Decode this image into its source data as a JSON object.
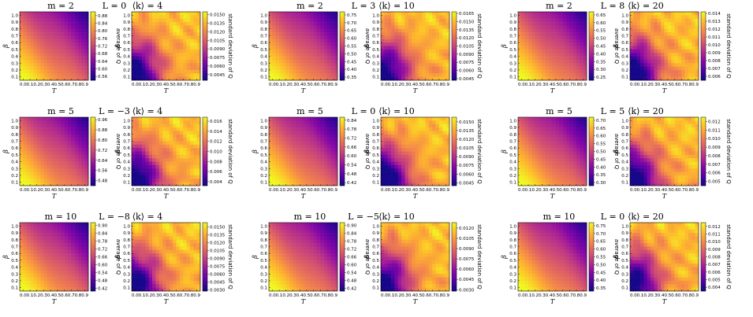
{
  "chart_data": [
    {
      "type": "heatmap",
      "row": 0,
      "col": 0,
      "title_left": "m = 2",
      "title_right": "L = 0",
      "avg_panel": {
        "colorbar_label": "average of Q",
        "colorbar_ticks": [
          "0.88",
          "0.84",
          "0.80",
          "0.76",
          "0.72",
          "0.68",
          "0.64",
          "0.60",
          "0.56"
        ],
        "vmin": 0.54,
        "vmax": 0.9
      },
      "std_panel": {
        "title": "⟨k⟩ = 4",
        "colorbar_label": "standard deviation of Q",
        "colorbar_ticks": [
          "0.0150",
          "0.0135",
          "0.0120",
          "0.0105",
          "0.0090",
          "0.0075",
          "0.0060",
          "0.0045"
        ],
        "vmin": 0.0035,
        "vmax": 0.0155
      },
      "xlabel": "T",
      "ylabel": "β",
      "xticks": [
        "0.0",
        "0.1",
        "0.2",
        "0.3",
        "0.4",
        "0.5",
        "0.6",
        "0.7",
        "0.8",
        "0.9"
      ],
      "yticks": [
        "0.1",
        "0.2",
        "0.3",
        "0.4",
        "0.5",
        "0.6",
        "0.7",
        "0.8",
        "0.9",
        "1.0"
      ]
    },
    {
      "type": "heatmap",
      "row": 0,
      "col": 1,
      "title_left": "m = 2",
      "title_right": "L = 3",
      "avg_panel": {
        "colorbar_label": "average of Q",
        "colorbar_ticks": [
          "0.75",
          "0.70",
          "0.65",
          "0.60",
          "0.55",
          "0.50",
          "0.45",
          "0.40",
          "0.35"
        ],
        "vmin": 0.33,
        "vmax": 0.77
      },
      "std_panel": {
        "title": "⟨k⟩ = 10",
        "colorbar_label": "standard deviation of Q",
        "colorbar_ticks": [
          "0.0165",
          "0.0150",
          "0.0135",
          "0.0120",
          "0.0105",
          "0.0090",
          "0.0075",
          "0.0060",
          "0.0045"
        ],
        "vmin": 0.0042,
        "vmax": 0.0168
      },
      "xlabel": "T",
      "ylabel": "β",
      "xticks": [
        "0.0",
        "0.1",
        "0.2",
        "0.3",
        "0.4",
        "0.5",
        "0.6",
        "0.7",
        "0.8",
        "0.9"
      ],
      "yticks": [
        "0.1",
        "0.2",
        "0.3",
        "0.4",
        "0.5",
        "0.6",
        "0.7",
        "0.8",
        "0.9",
        "1.0"
      ]
    },
    {
      "type": "heatmap",
      "row": 0,
      "col": 2,
      "title_left": "m = 2",
      "title_right": "L = 8",
      "avg_panel": {
        "colorbar_label": "average of Q",
        "colorbar_ticks": [
          "0.65",
          "0.60",
          "0.55",
          "0.50",
          "0.45",
          "0.40",
          "0.35",
          "0.30",
          "0.25"
        ],
        "vmin": 0.23,
        "vmax": 0.67
      },
      "std_panel": {
        "title": "⟨k⟩ = 20",
        "colorbar_label": "standard deviation of Q",
        "colorbar_ticks": [
          "0.014",
          "0.013",
          "0.012",
          "0.011",
          "0.010",
          "0.009",
          "0.008",
          "0.007",
          "0.006"
        ],
        "vmin": 0.0055,
        "vmax": 0.0142
      },
      "xlabel": "T",
      "ylabel": "β",
      "xticks": [
        "0.0",
        "0.1",
        "0.2",
        "0.3",
        "0.4",
        "0.5",
        "0.6",
        "0.7",
        "0.8",
        "0.9"
      ],
      "yticks": [
        "0.1",
        "0.2",
        "0.3",
        "0.4",
        "0.5",
        "0.6",
        "0.7",
        "0.8",
        "0.9",
        "1.0"
      ]
    },
    {
      "type": "heatmap",
      "row": 1,
      "col": 0,
      "title_left": "m = 5",
      "title_right": "L = −3",
      "avg_panel": {
        "colorbar_label": "average of Q",
        "colorbar_ticks": [
          "0.96",
          "0.88",
          "0.80",
          "0.72",
          "0.64",
          "0.56",
          "0.48"
        ],
        "vmin": 0.44,
        "vmax": 0.98
      },
      "std_panel": {
        "title": "⟨k⟩ = 4",
        "colorbar_label": "standard deviation of Q",
        "colorbar_ticks": [
          "0.016",
          "0.014",
          "0.012",
          "0.010",
          "0.008",
          "0.006",
          "0.004"
        ],
        "vmin": 0.0032,
        "vmax": 0.0168
      },
      "xlabel": "T",
      "ylabel": "β",
      "xticks": [
        "0.0",
        "0.1",
        "0.2",
        "0.3",
        "0.4",
        "0.5",
        "0.6",
        "0.7",
        "0.8",
        "0.9"
      ],
      "yticks": [
        "0.1",
        "0.2",
        "0.3",
        "0.4",
        "0.5",
        "0.6",
        "0.7",
        "0.8",
        "0.9",
        "1.0"
      ]
    },
    {
      "type": "heatmap",
      "row": 1,
      "col": 1,
      "title_left": "m = 5",
      "title_right": "L = 0",
      "avg_panel": {
        "colorbar_label": "average of Q",
        "colorbar_ticks": [
          "0.84",
          "0.78",
          "0.72",
          "0.66",
          "0.60",
          "0.54",
          "0.48",
          "0.42"
        ],
        "vmin": 0.4,
        "vmax": 0.86
      },
      "std_panel": {
        "title": "⟨k⟩ = 10",
        "colorbar_label": "standard deviation of Q",
        "colorbar_ticks": [
          "0.0150",
          "0.0135",
          "0.0120",
          "0.0105",
          "0.0090",
          "0.0075",
          "0.0060",
          "0.0045"
        ],
        "vmin": 0.004,
        "vmax": 0.0158
      },
      "xlabel": "T",
      "ylabel": "β",
      "xticks": [
        "0.0",
        "0.1",
        "0.2",
        "0.3",
        "0.4",
        "0.5",
        "0.6",
        "0.7",
        "0.8",
        "0.9"
      ],
      "yticks": [
        "0.1",
        "0.2",
        "0.3",
        "0.4",
        "0.5",
        "0.6",
        "0.7",
        "0.8",
        "0.9",
        "1.0"
      ]
    },
    {
      "type": "heatmap",
      "row": 1,
      "col": 2,
      "title_left": "m = 5",
      "title_right": "L = 5",
      "avg_panel": {
        "colorbar_label": "average of Q",
        "colorbar_ticks": [
          "0.70",
          "0.65",
          "0.60",
          "0.55",
          "0.50",
          "0.45",
          "0.40",
          "0.35",
          "0.30"
        ],
        "vmin": 0.28,
        "vmax": 0.72
      },
      "std_panel": {
        "title": "⟨k⟩ = 20",
        "colorbar_label": "standard deviation of Q",
        "colorbar_ticks": [
          "0.012",
          "0.011",
          "0.010",
          "0.009",
          "0.008",
          "0.007",
          "0.006",
          "0.005"
        ],
        "vmin": 0.0045,
        "vmax": 0.0125
      },
      "xlabel": "T",
      "ylabel": "β",
      "xticks": [
        "0.0",
        "0.1",
        "0.2",
        "0.3",
        "0.4",
        "0.5",
        "0.6",
        "0.7",
        "0.8",
        "0.9"
      ],
      "yticks": [
        "0.1",
        "0.2",
        "0.3",
        "0.4",
        "0.5",
        "0.6",
        "0.7",
        "0.8",
        "0.9",
        "1.0"
      ]
    },
    {
      "type": "heatmap",
      "row": 2,
      "col": 0,
      "title_left": "m = 10",
      "title_right": "L = −8",
      "avg_panel": {
        "colorbar_label": "average of Q",
        "colorbar_ticks": [
          "0.90",
          "0.84",
          "0.78",
          "0.72",
          "0.66",
          "0.60",
          "0.54",
          "0.48",
          "0.42"
        ],
        "vmin": 0.4,
        "vmax": 0.92
      },
      "std_panel": {
        "title": "⟨k⟩ = 4",
        "colorbar_label": "standard deviation of Q",
        "colorbar_ticks": [
          "0.0150",
          "0.0135",
          "0.0120",
          "0.0105",
          "0.0090",
          "0.0075",
          "0.0060",
          "0.0045",
          "0.0030"
        ],
        "vmin": 0.0028,
        "vmax": 0.0158
      },
      "xlabel": "T",
      "ylabel": "β",
      "xticks": [
        "0.0",
        "0.1",
        "0.2",
        "0.3",
        "0.4",
        "0.5",
        "0.6",
        "0.7",
        "0.8",
        "0.9"
      ],
      "yticks": [
        "0.1",
        "0.2",
        "0.3",
        "0.4",
        "0.5",
        "0.6",
        "0.7",
        "0.8",
        "0.9",
        "1.0"
      ]
    },
    {
      "type": "heatmap",
      "row": 2,
      "col": 1,
      "title_left": "m = 10",
      "title_right": "L = −5",
      "avg_panel": {
        "colorbar_label": "average of Q",
        "colorbar_ticks": [
          "0.90",
          "0.84",
          "0.78",
          "0.72",
          "0.66",
          "0.60",
          "0.54",
          "0.48",
          "0.42"
        ],
        "vmin": 0.4,
        "vmax": 0.92
      },
      "std_panel": {
        "title": "⟨k⟩ = 10",
        "colorbar_label": "standard deviation of Q",
        "colorbar_ticks": [
          "0.0120",
          "0.0105",
          "0.0090",
          "0.0075",
          "0.0060",
          "0.0045",
          "0.0030"
        ],
        "vmin": 0.0028,
        "vmax": 0.0128
      },
      "xlabel": "T",
      "ylabel": "β",
      "xticks": [
        "0.0",
        "0.1",
        "0.2",
        "0.3",
        "0.4",
        "0.5",
        "0.6",
        "0.7",
        "0.8",
        "0.9"
      ],
      "yticks": [
        "0.1",
        "0.2",
        "0.3",
        "0.4",
        "0.5",
        "0.6",
        "0.7",
        "0.8",
        "0.9",
        "1.0"
      ]
    },
    {
      "type": "heatmap",
      "row": 2,
      "col": 2,
      "title_left": "m = 10",
      "title_right": "L = 0",
      "avg_panel": {
        "colorbar_label": "average of Q",
        "colorbar_ticks": [
          "0.75",
          "0.70",
          "0.65",
          "0.60",
          "0.55",
          "0.50",
          "0.45",
          "0.40",
          "0.35"
        ],
        "vmin": 0.33,
        "vmax": 0.77
      },
      "std_panel": {
        "title": "⟨k⟩ = 20",
        "colorbar_label": "standard deviation of Q",
        "colorbar_ticks": [
          "0.012",
          "0.011",
          "0.010",
          "0.009",
          "0.008",
          "0.007",
          "0.006",
          "0.005",
          "0.004"
        ],
        "vmin": 0.0035,
        "vmax": 0.0125
      },
      "xlabel": "T",
      "ylabel": "β",
      "xticks": [
        "0.0",
        "0.1",
        "0.2",
        "0.3",
        "0.4",
        "0.5",
        "0.6",
        "0.7",
        "0.8",
        "0.9"
      ],
      "yticks": [
        "0.1",
        "0.2",
        "0.3",
        "0.4",
        "0.5",
        "0.6",
        "0.7",
        "0.8",
        "0.9",
        "1.0"
      ]
    }
  ],
  "colormap": "plasma",
  "colors": {
    "low": "#0d0887",
    "mid": "#cc4778",
    "high": "#f0f921"
  }
}
